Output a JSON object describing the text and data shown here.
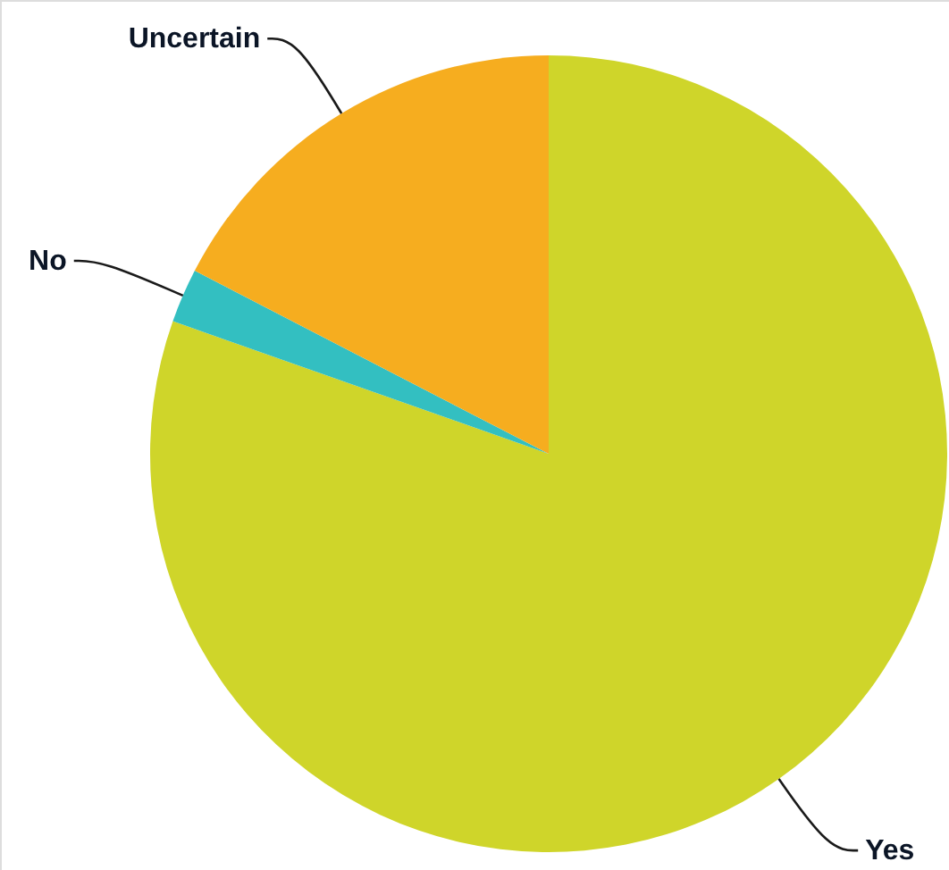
{
  "chart_data": {
    "type": "pie",
    "categories": [
      "Yes",
      "No",
      "Uncertain"
    ],
    "values": [
      80.4,
      2.2,
      17.4
    ],
    "colors": [
      "#cfd52a",
      "#33bfc1",
      "#f6ad1f"
    ]
  }
}
